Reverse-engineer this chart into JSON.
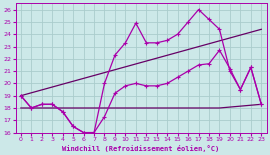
{
  "background_color": "#cce8e8",
  "grid_color": "#aacccc",
  "line_color": "#aa00aa",
  "line_color2": "#660066",
  "xlabel": "Windchill (Refroidissement éolien,°C)",
  "xlim": [
    -0.5,
    23.5
  ],
  "ylim": [
    16,
    26.5
  ],
  "yticks": [
    16,
    17,
    18,
    19,
    20,
    21,
    22,
    23,
    24,
    25,
    26
  ],
  "xticks": [
    0,
    1,
    2,
    3,
    4,
    5,
    6,
    7,
    8,
    9,
    10,
    11,
    12,
    13,
    14,
    15,
    16,
    17,
    18,
    19,
    20,
    21,
    22,
    23
  ],
  "curve_dip_x": [
    0,
    1,
    2,
    3,
    4,
    5,
    6,
    7,
    8,
    9,
    10,
    11,
    12,
    13,
    14,
    15,
    16,
    17,
    18,
    19,
    20,
    21,
    22,
    23
  ],
  "curve_dip_y": [
    19,
    18,
    18.3,
    18.3,
    17.7,
    16.5,
    16.0,
    16.0,
    17.3,
    19.2,
    19.8,
    20.0,
    19.8,
    19.8,
    20.0,
    20.5,
    21.0,
    21.5,
    21.6,
    22.7,
    21.2,
    19.5,
    21.3,
    18.3
  ],
  "curve_peak_x": [
    0,
    1,
    2,
    3,
    4,
    5,
    6,
    7,
    8,
    9,
    10,
    11,
    12,
    13,
    14,
    15,
    16,
    17,
    18,
    19,
    20,
    21,
    22,
    23
  ],
  "curve_peak_y": [
    19,
    18,
    18.3,
    18.3,
    17.7,
    16.5,
    16.0,
    16.0,
    20.0,
    22.3,
    23.3,
    24.9,
    23.3,
    23.3,
    23.5,
    24.0,
    25.0,
    26.0,
    25.2,
    24.4,
    21.0,
    19.5,
    21.3,
    18.3
  ],
  "flat_line_x": [
    0,
    3,
    10,
    19,
    23
  ],
  "flat_line_y": [
    18.0,
    18.0,
    18.0,
    18.0,
    18.3
  ],
  "diag_line_x": [
    0,
    23
  ],
  "diag_line_y": [
    19.0,
    24.4
  ]
}
